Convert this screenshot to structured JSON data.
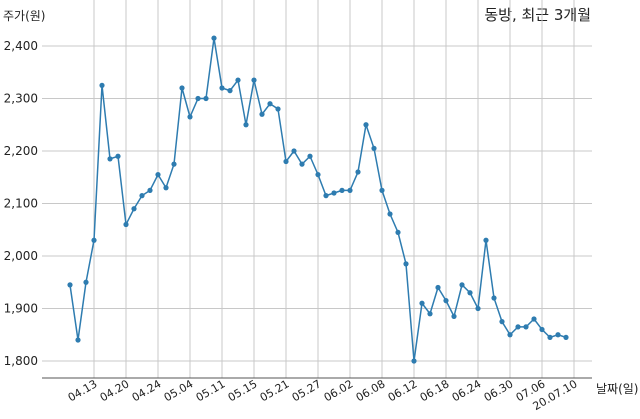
{
  "chart_data": {
    "type": "line",
    "title": "동방, 최근 3개월",
    "ylabel": "주가(원)",
    "xlabel": "날짜(일)",
    "ylim": [
      1760,
      2450
    ],
    "yticks": [
      1800,
      1900,
      2000,
      2100,
      2200,
      2300,
      2400
    ],
    "ytick_labels": [
      "1,800",
      "1,900",
      "2,000",
      "2,100",
      "2,200",
      "2,300",
      "2,400"
    ],
    "xtick_labels": [
      "04.13",
      "04.20",
      "04.24",
      "05.04",
      "05.11",
      "05.15",
      "05.21",
      "05.27",
      "06.02",
      "06.08",
      "06.12",
      "06.18",
      "06.24",
      "06.30",
      "07.06",
      "20.07.10"
    ],
    "xtick_index": [
      3,
      7,
      11,
      15,
      19,
      23,
      27,
      31,
      35,
      39,
      43,
      47,
      51,
      55,
      59,
      63
    ],
    "grid": true,
    "line_color": "#2e7cb0",
    "series": [
      {
        "values": [
          1945,
          1840,
          1950,
          2030,
          2325,
          2185,
          2190,
          2060,
          2090,
          2115,
          2125,
          2155,
          2130,
          2175,
          2320,
          2265,
          2300,
          2300,
          2415,
          2320,
          2315,
          2335,
          2250,
          2335,
          2270,
          2290,
          2280,
          2180,
          2200,
          2175,
          2190,
          2155,
          2115,
          2120,
          2125,
          2125,
          2160,
          2250,
          2205,
          2125,
          2080,
          2045,
          1985,
          1800,
          1910,
          1890,
          1940,
          1915,
          1885,
          1945,
          1930,
          1900,
          2030,
          1920,
          1875,
          1850,
          1865,
          1865,
          1880,
          1860,
          1845,
          1850,
          1845
        ]
      }
    ]
  }
}
